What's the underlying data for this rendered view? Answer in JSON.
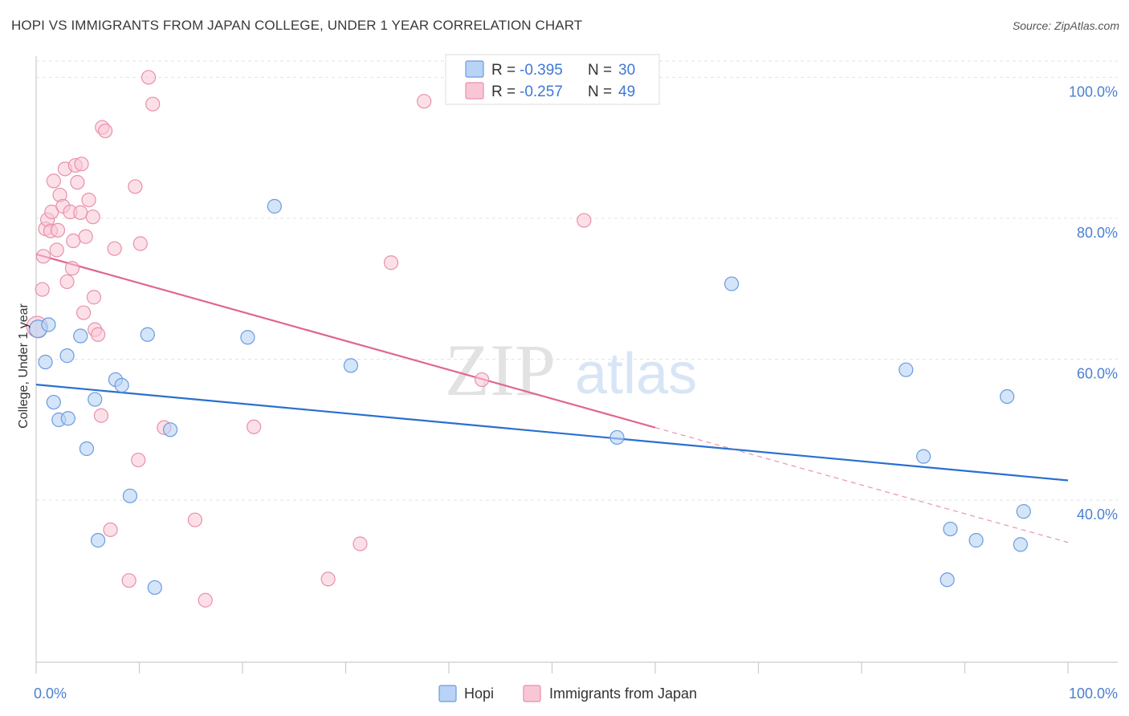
{
  "title": "HOPI VS IMMIGRANTS FROM JAPAN COLLEGE, UNDER 1 YEAR CORRELATION CHART",
  "source": "Source: ZipAtlas.com",
  "watermark": {
    "zip": "ZIP",
    "atlas": "atlas"
  },
  "colors": {
    "hopi_fill": "#b8d3f5",
    "hopi_stroke": "#6a9be0",
    "hopi_line": "#2a6fd0",
    "japan_fill": "#f9c6d5",
    "japan_stroke": "#e890aa",
    "japan_line": "#e06690",
    "grid": "#e3e3e3",
    "axis_text": "#4a7fd4"
  },
  "legend": {
    "hopi": {
      "r_label": "R =",
      "r_value": "-0.395",
      "n_label": "N =",
      "n_value": "30"
    },
    "japan": {
      "r_label": "R =",
      "r_value": "-0.257",
      "n_label": "N =",
      "n_value": "49"
    }
  },
  "bottom_legend": {
    "hopi": "Hopi",
    "japan": "Immigrants from Japan"
  },
  "chart_data": {
    "type": "scatter",
    "title": "HOPI VS IMMIGRANTS FROM JAPAN COLLEGE, UNDER 1 YEAR CORRELATION CHART",
    "xlabel": "",
    "ylabel": "College, Under 1 year",
    "xlim": [
      0,
      100
    ],
    "ylim": [
      17,
      103
    ],
    "x_tick_labels": [
      "0.0%",
      "100.0%"
    ],
    "y_ticks": [
      {
        "value": 40,
        "label": "40.0%"
      },
      {
        "value": 60,
        "label": "60.0%"
      },
      {
        "value": 80,
        "label": "80.0%"
      },
      {
        "value": 100,
        "label": "100.0%"
      }
    ],
    "series": [
      {
        "name": "Hopi",
        "r": -0.395,
        "n": 30,
        "trend": {
          "x0": 0,
          "y0": 56.4,
          "x1": 100,
          "y1": 42.8
        },
        "points": [
          [
            0.2,
            64.3
          ],
          [
            1.2,
            64.9
          ],
          [
            0.9,
            59.6
          ],
          [
            1.7,
            53.9
          ],
          [
            2.2,
            51.4
          ],
          [
            3.1,
            51.6
          ],
          [
            3.0,
            60.5
          ],
          [
            4.3,
            63.3
          ],
          [
            4.9,
            47.3
          ],
          [
            5.7,
            54.3
          ],
          [
            6.0,
            34.3
          ],
          [
            7.7,
            57.1
          ],
          [
            8.3,
            56.3
          ],
          [
            9.1,
            40.6
          ],
          [
            10.8,
            63.5
          ],
          [
            11.5,
            27.6
          ],
          [
            13.0,
            50.0
          ],
          [
            20.5,
            63.1
          ],
          [
            23.1,
            81.7
          ],
          [
            30.5,
            59.1
          ],
          [
            56.3,
            48.9
          ],
          [
            67.4,
            70.7
          ],
          [
            84.3,
            58.5
          ],
          [
            86.0,
            46.2
          ],
          [
            88.3,
            28.7
          ],
          [
            88.6,
            35.9
          ],
          [
            91.1,
            34.3
          ],
          [
            94.1,
            54.7
          ],
          [
            95.4,
            33.7
          ],
          [
            95.7,
            38.4
          ]
        ]
      },
      {
        "name": "Immigrants from Japan",
        "r": -0.257,
        "n": 49,
        "trend": {
          "x0": 0,
          "y0": 74.9,
          "x1": 60.0,
          "y1": 50.3,
          "dash_x1": 100,
          "dash_y1": 34.0
        },
        "points": [
          [
            0.1,
            64.6
          ],
          [
            0.6,
            69.9
          ],
          [
            0.7,
            74.6
          ],
          [
            0.9,
            78.5
          ],
          [
            1.1,
            79.8
          ],
          [
            1.4,
            78.2
          ],
          [
            1.5,
            80.9
          ],
          [
            1.7,
            85.3
          ],
          [
            2.0,
            75.5
          ],
          [
            2.1,
            78.3
          ],
          [
            2.3,
            83.3
          ],
          [
            2.6,
            81.7
          ],
          [
            2.8,
            87.0
          ],
          [
            3.0,
            71.0
          ],
          [
            3.3,
            80.9
          ],
          [
            3.5,
            72.9
          ],
          [
            3.6,
            76.8
          ],
          [
            3.8,
            87.5
          ],
          [
            4.0,
            85.1
          ],
          [
            4.3,
            80.8
          ],
          [
            4.4,
            87.7
          ],
          [
            4.6,
            66.6
          ],
          [
            4.8,
            77.4
          ],
          [
            5.1,
            82.6
          ],
          [
            5.5,
            80.2
          ],
          [
            5.6,
            68.8
          ],
          [
            5.7,
            64.2
          ],
          [
            6.0,
            63.5
          ],
          [
            6.3,
            52.0
          ],
          [
            6.4,
            92.9
          ],
          [
            6.7,
            92.4
          ],
          [
            7.2,
            35.8
          ],
          [
            7.6,
            75.7
          ],
          [
            9.0,
            28.6
          ],
          [
            9.6,
            84.5
          ],
          [
            9.9,
            45.7
          ],
          [
            10.1,
            76.4
          ],
          [
            10.9,
            100.0
          ],
          [
            11.3,
            96.2
          ],
          [
            12.4,
            50.3
          ],
          [
            15.4,
            37.2
          ],
          [
            16.4,
            25.8
          ],
          [
            21.1,
            50.4
          ],
          [
            28.3,
            28.8
          ],
          [
            31.4,
            33.8
          ],
          [
            34.4,
            73.7
          ],
          [
            37.6,
            96.6
          ],
          [
            43.2,
            57.1
          ],
          [
            53.1,
            79.7
          ]
        ]
      }
    ]
  }
}
